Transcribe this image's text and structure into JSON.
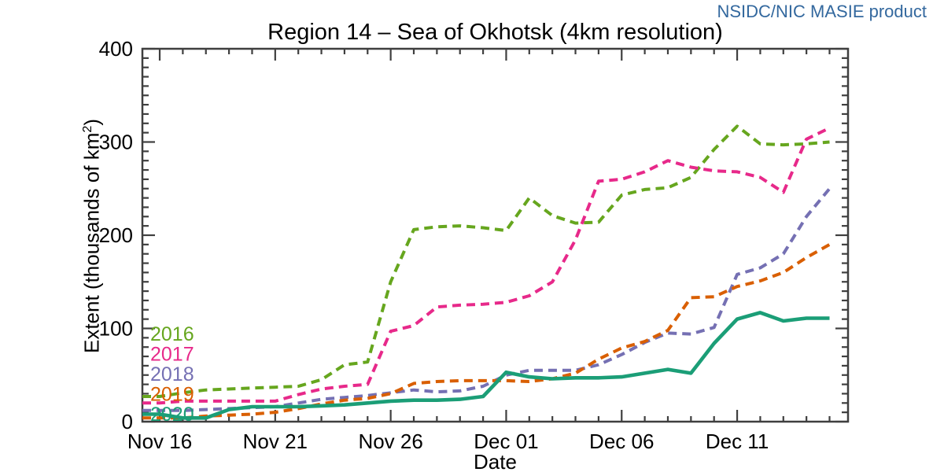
{
  "header": {
    "source_label": "NSIDC/NIC MASIE product",
    "source_color": "#33689E"
  },
  "chart_data": {
    "type": "line",
    "title": "Region 14 – Sea of Okhotsk (4km resolution)",
    "xlabel": "Date",
    "ylabel": "Extent (thousands of km²)",
    "ylabel_prefix": "Extent (thousands of km",
    "ylabel_sup": "2",
    "ylabel_suffix": ")",
    "ylim": [
      0,
      400
    ],
    "y_major_ticks": [
      0,
      100,
      200,
      300,
      400
    ],
    "y_minor_step": 10,
    "x_range_days": [
      -0.75,
      29.8
    ],
    "x_minor_step_days": 1,
    "x_major_ticks": [
      {
        "day": 0,
        "label": "Nov 16"
      },
      {
        "day": 5,
        "label": "Nov 21"
      },
      {
        "day": 10,
        "label": "Nov 26"
      },
      {
        "day": 15,
        "label": "Dec 01"
      },
      {
        "day": 20,
        "label": "Dec 06"
      },
      {
        "day": 25,
        "label": "Dec 11"
      }
    ],
    "grid": "off",
    "axis_color": "#3f3f3f",
    "dates": [
      "Nov 16",
      "Nov 17",
      "Nov 18",
      "Nov 19",
      "Nov 20",
      "Nov 21",
      "Nov 22",
      "Nov 23",
      "Nov 24",
      "Nov 25",
      "Nov 26",
      "Nov 27",
      "Nov 28",
      "Nov 29",
      "Nov 30",
      "Dec 01",
      "Dec 02",
      "Dec 03",
      "Dec 04",
      "Dec 05",
      "Dec 06",
      "Dec 07",
      "Dec 08",
      "Dec 09",
      "Dec 10",
      "Dec 11",
      "Dec 12",
      "Dec 13",
      "Dec 14",
      "Dec 15"
    ],
    "series": [
      {
        "name": "2016",
        "color": "#66A61E",
        "line_style": "dashed",
        "values": [
          27,
          31,
          34,
          35,
          36,
          37,
          38,
          45,
          61,
          64,
          150,
          206,
          209,
          210,
          208,
          205,
          240,
          221,
          213,
          214,
          243,
          249,
          251,
          262,
          292,
          317,
          298,
          297,
          298,
          300
        ]
      },
      {
        "name": "2017",
        "color": "#E7298A",
        "line_style": "dashed",
        "values": [
          20,
          22,
          22,
          22,
          22,
          22,
          29,
          35,
          38,
          40,
          97,
          103,
          123,
          125,
          126,
          128,
          135,
          150,
          195,
          258,
          260,
          268,
          280,
          273,
          269,
          268,
          262,
          246,
          303,
          315
        ]
      },
      {
        "name": "2018",
        "color": "#7570B3",
        "line_style": "dashed",
        "values": [
          12,
          12,
          13,
          14,
          15,
          16,
          20,
          24,
          26,
          28,
          31,
          34,
          32,
          33,
          38,
          50,
          55,
          55,
          55,
          61,
          72,
          85,
          95,
          94,
          101,
          158,
          165,
          180,
          220,
          250
        ]
      },
      {
        "name": "2019",
        "color": "#D95F02",
        "line_style": "dashed",
        "values": [
          4,
          4,
          6,
          7,
          8,
          10,
          14,
          19,
          23,
          25,
          30,
          41,
          43,
          44,
          44,
          44,
          43,
          46,
          52,
          67,
          79,
          86,
          98,
          133,
          134,
          145,
          151,
          160,
          176,
          190
        ]
      },
      {
        "name": "2020",
        "color": "#1B9E77",
        "line_style": "solid",
        "values": [
          8,
          4,
          4,
          13,
          16,
          16,
          16,
          17,
          18,
          20,
          22,
          23,
          23,
          24,
          27,
          53,
          48,
          46,
          47,
          47,
          48,
          52,
          56,
          52,
          84,
          110,
          117,
          108,
          111,
          111
        ]
      }
    ],
    "legend": {
      "position": "inside-bottom-left",
      "entries": [
        "2016",
        "2017",
        "2018",
        "2019",
        "2020"
      ]
    }
  }
}
